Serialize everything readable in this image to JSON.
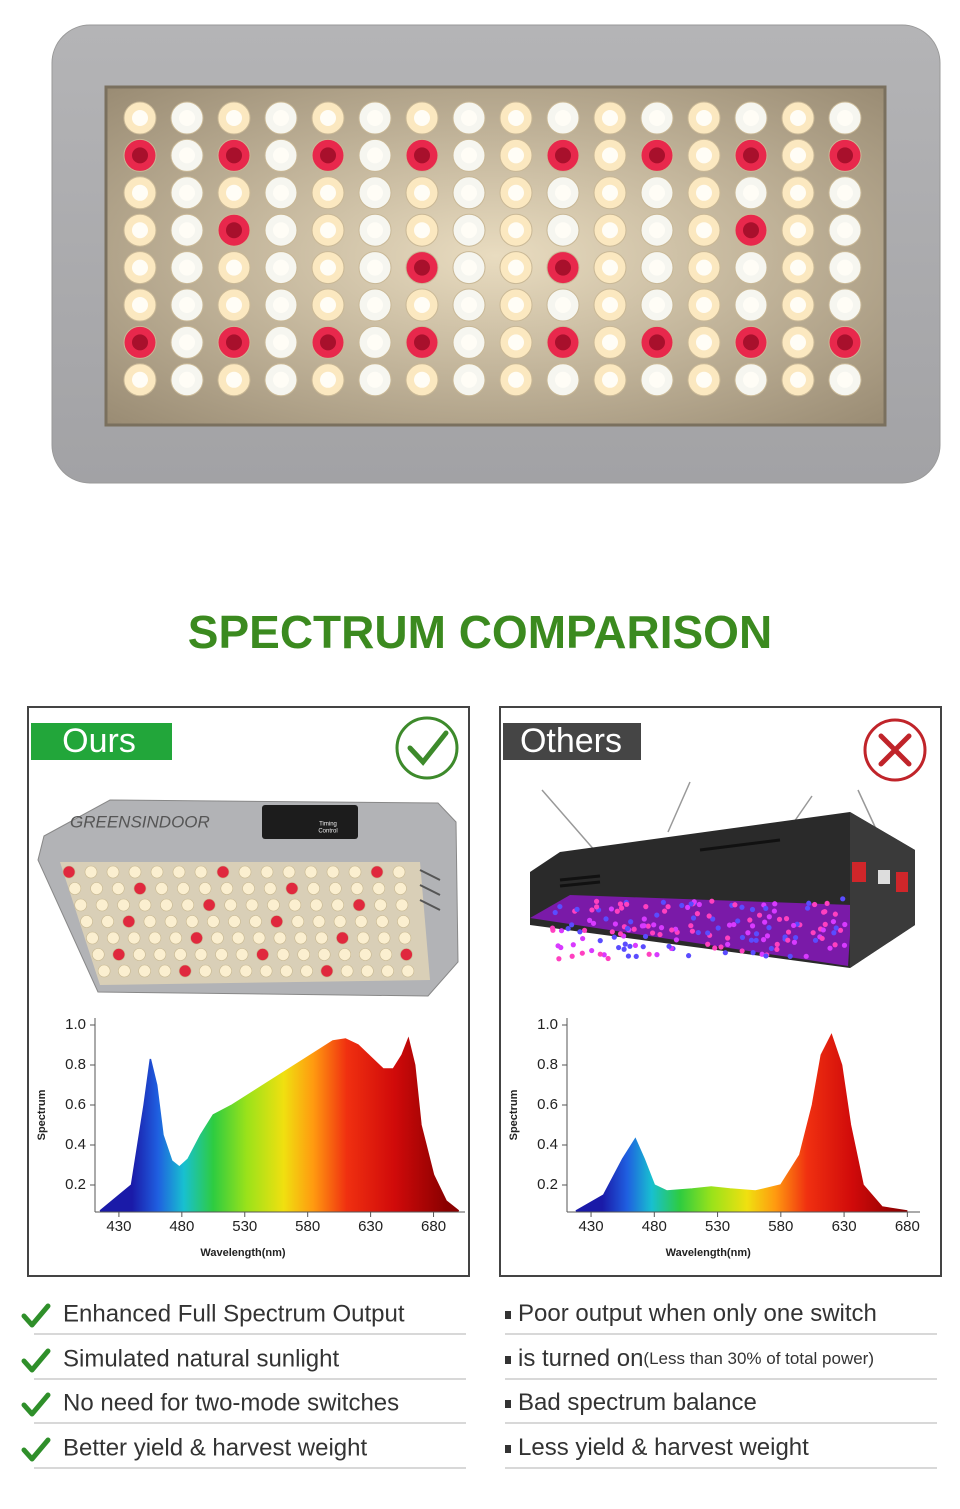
{
  "title": "SPECTRUM COMPARISON",
  "panels": [
    {
      "label": "Ours",
      "brand": "GREENSINDOOR",
      "control": [
        "Timing",
        "Control"
      ]
    },
    {
      "label": "Others"
    }
  ],
  "chart_data": [
    {
      "type": "area",
      "ylabel": "Spectrum",
      "xlabel": "Wavelength(nm)",
      "x": [
        415,
        440,
        450,
        455,
        460,
        465,
        472,
        478,
        485,
        495,
        505,
        520,
        540,
        560,
        580,
        600,
        610,
        620,
        630,
        640,
        648,
        655,
        660,
        665,
        670,
        680,
        690,
        700
      ],
      "values": [
        0.07,
        0.2,
        0.6,
        0.83,
        0.7,
        0.45,
        0.32,
        0.29,
        0.33,
        0.45,
        0.55,
        0.6,
        0.68,
        0.76,
        0.84,
        0.92,
        0.93,
        0.9,
        0.84,
        0.78,
        0.78,
        0.85,
        0.93,
        0.8,
        0.5,
        0.25,
        0.12,
        0.07
      ],
      "xlim": [
        411,
        705
      ],
      "ylim": [
        0.065,
        1.035
      ],
      "xticks": [
        430,
        480,
        530,
        580,
        630,
        680
      ],
      "yticks": [
        0.2,
        0.4,
        0.6,
        0.8,
        {
          "value": 1,
          "label": "1.0"
        }
      ]
    },
    {
      "type": "area",
      "ylabel": "Spectrum",
      "xlabel": "Wavelength(nm)",
      "x": [
        418,
        440,
        455,
        465,
        472,
        480,
        490,
        510,
        525,
        540,
        560,
        580,
        595,
        605,
        612,
        620,
        628,
        635,
        645,
        660,
        680
      ],
      "values": [
        0.07,
        0.15,
        0.33,
        0.43,
        0.33,
        0.2,
        0.17,
        0.18,
        0.19,
        0.18,
        0.17,
        0.2,
        0.35,
        0.6,
        0.85,
        0.95,
        0.8,
        0.5,
        0.2,
        0.09,
        0.07
      ],
      "xlim": [
        411,
        690
      ],
      "ylim": [
        0.065,
        1.035
      ],
      "xticks": [
        430,
        480,
        530,
        580,
        630,
        680
      ],
      "yticks": [
        0.2,
        0.4,
        0.6,
        0.8,
        {
          "value": 1,
          "label": "1.0"
        }
      ]
    }
  ],
  "lists": {
    "ours": [
      "Enhanced Full Spectrum Output",
      "Simulated natural sunlight",
      "No need for two-mode switches",
      "Better yield & harvest weight"
    ],
    "others": [
      {
        "text": "Poor output when only one switch"
      },
      {
        "text": "is turned on",
        "note": "(Less than 30% of total power)"
      },
      {
        "text": "Bad spectrum balance"
      },
      {
        "text": "Less yield & harvest weight"
      }
    ]
  }
}
